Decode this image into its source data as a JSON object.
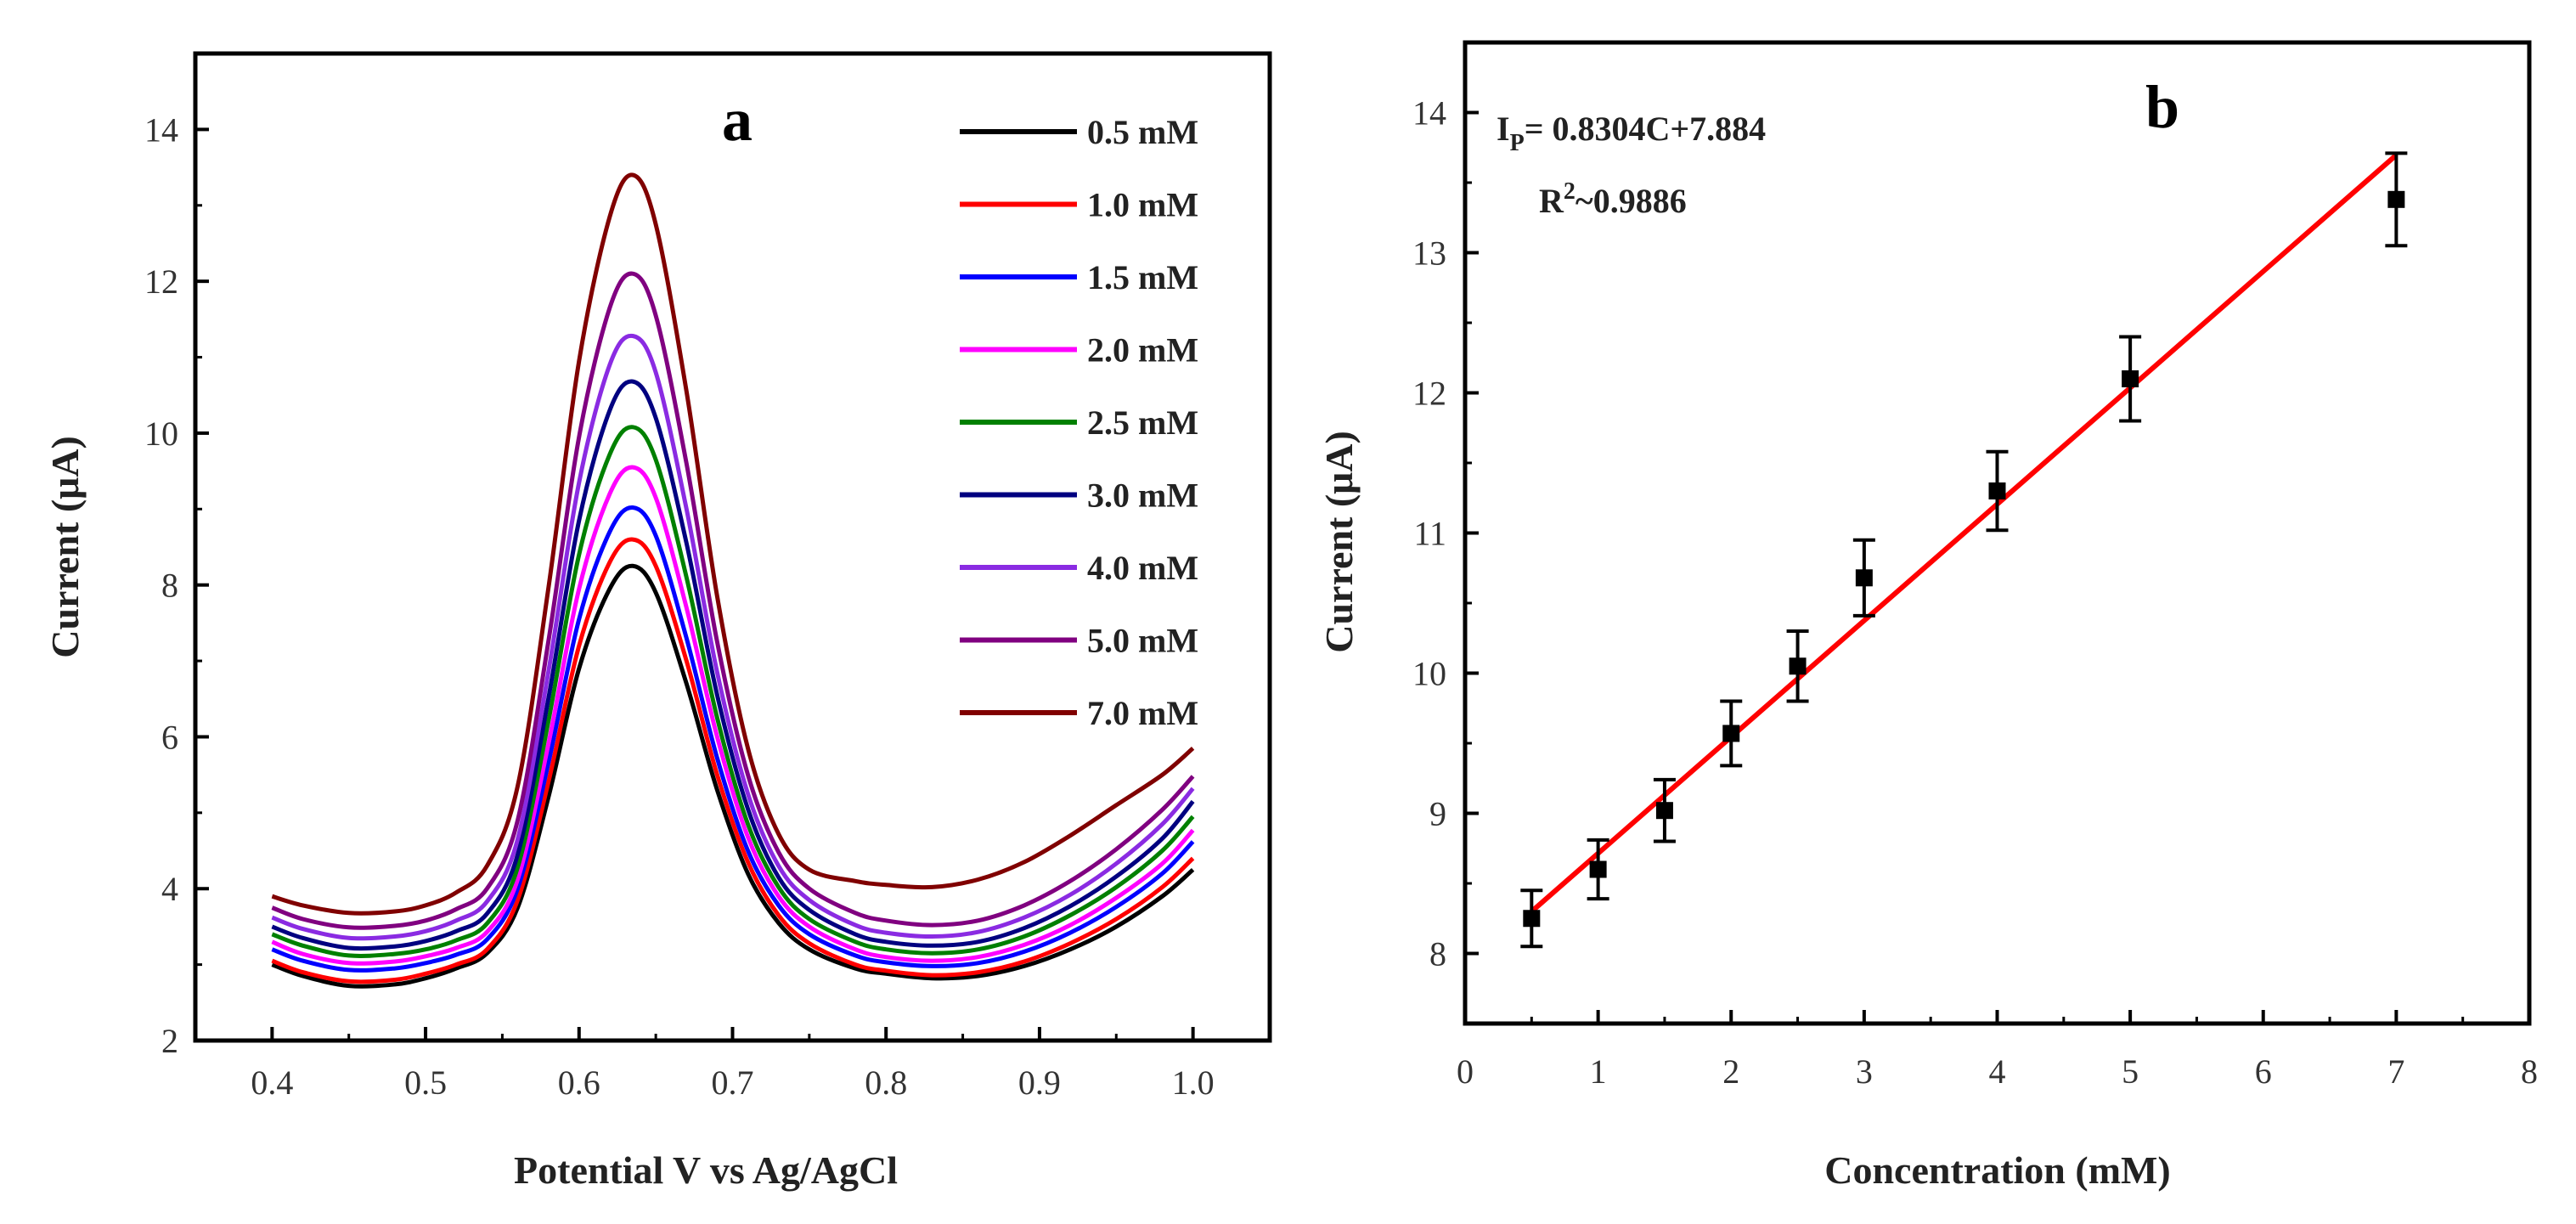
{
  "chart_data": [
    {
      "panel_label": "a",
      "type": "line",
      "title": "",
      "xlabel": "Potential V vs Ag/AgCl",
      "ylabel": "Current (μA)",
      "xlim": [
        0.35,
        1.05
      ],
      "ylim": [
        2,
        15
      ],
      "xticks": [
        0.4,
        0.5,
        0.6,
        0.7,
        0.8,
        0.9,
        1.0
      ],
      "xtick_labels": [
        "0.4",
        "0.5",
        "0.6",
        "0.7",
        "0.8",
        "0.9",
        "1.0"
      ],
      "yticks": [
        2,
        4,
        6,
        8,
        10,
        12,
        14
      ],
      "ytick_labels": [
        "2",
        "4",
        "6",
        "8",
        "10",
        "12",
        "14"
      ],
      "legend_position": "top-right",
      "x": [
        0.4,
        0.42,
        0.45,
        0.48,
        0.5,
        0.52,
        0.54,
        0.56,
        0.58,
        0.6,
        0.62,
        0.635,
        0.65,
        0.67,
        0.69,
        0.71,
        0.73,
        0.75,
        0.78,
        0.8,
        0.83,
        0.86,
        0.89,
        0.92,
        0.95,
        0.98,
        1.0
      ],
      "series": [
        {
          "name": "0.5 mM",
          "color": "#000000",
          "values": [
            3.0,
            2.85,
            2.72,
            2.74,
            2.82,
            2.95,
            3.15,
            3.75,
            5.2,
            6.9,
            7.95,
            8.25,
            7.9,
            6.7,
            5.3,
            4.2,
            3.55,
            3.2,
            2.95,
            2.88,
            2.82,
            2.85,
            2.98,
            3.2,
            3.5,
            3.9,
            4.25
          ]
        },
        {
          "name": "1.0 mM",
          "color": "#ff0000",
          "values": [
            3.05,
            2.9,
            2.78,
            2.8,
            2.88,
            3.0,
            3.2,
            3.85,
            5.4,
            7.2,
            8.3,
            8.6,
            8.25,
            7.0,
            5.5,
            4.35,
            3.65,
            3.28,
            3.0,
            2.92,
            2.86,
            2.9,
            3.04,
            3.28,
            3.6,
            4.02,
            4.4
          ]
        },
        {
          "name": "1.5 mM",
          "color": "#0000ff",
          "values": [
            3.2,
            3.05,
            2.93,
            2.95,
            3.02,
            3.13,
            3.33,
            4.0,
            5.65,
            7.55,
            8.7,
            9.02,
            8.65,
            7.3,
            5.72,
            4.5,
            3.78,
            3.4,
            3.12,
            3.03,
            2.98,
            3.02,
            3.17,
            3.42,
            3.76,
            4.2,
            4.62
          ]
        },
        {
          "name": "2.0 mM",
          "color": "#ff00ff",
          "values": [
            3.3,
            3.14,
            3.02,
            3.04,
            3.11,
            3.22,
            3.43,
            4.12,
            5.9,
            7.95,
            9.2,
            9.55,
            9.15,
            7.7,
            6.0,
            4.68,
            3.9,
            3.5,
            3.2,
            3.1,
            3.05,
            3.1,
            3.26,
            3.52,
            3.88,
            4.33,
            4.77
          ]
        },
        {
          "name": "2.5 mM",
          "color": "#008000",
          "values": [
            3.4,
            3.25,
            3.12,
            3.14,
            3.2,
            3.32,
            3.54,
            4.28,
            6.2,
            8.4,
            9.72,
            10.08,
            9.65,
            8.1,
            6.25,
            4.85,
            4.02,
            3.6,
            3.3,
            3.2,
            3.15,
            3.2,
            3.37,
            3.65,
            4.02,
            4.5,
            4.95
          ]
        },
        {
          "name": "3.0 mM",
          "color": "#000080",
          "values": [
            3.5,
            3.35,
            3.22,
            3.24,
            3.31,
            3.44,
            3.67,
            4.45,
            6.5,
            8.85,
            10.3,
            10.68,
            10.2,
            8.55,
            6.55,
            5.05,
            4.15,
            3.72,
            3.4,
            3.3,
            3.25,
            3.3,
            3.48,
            3.77,
            4.16,
            4.66,
            5.15
          ]
        },
        {
          "name": "4.0 mM",
          "color": "#8a2be2",
          "values": [
            3.62,
            3.47,
            3.35,
            3.37,
            3.44,
            3.58,
            3.83,
            4.65,
            6.85,
            9.35,
            10.9,
            11.28,
            10.8,
            9.0,
            6.85,
            5.25,
            4.3,
            3.85,
            3.52,
            3.42,
            3.37,
            3.43,
            3.62,
            3.92,
            4.33,
            4.85,
            5.32
          ]
        },
        {
          "name": "5.0 mM",
          "color": "#800080",
          "values": [
            3.75,
            3.6,
            3.49,
            3.51,
            3.58,
            3.73,
            4.0,
            4.9,
            7.25,
            9.95,
            11.65,
            12.1,
            11.55,
            9.6,
            7.25,
            5.5,
            4.48,
            4.0,
            3.68,
            3.58,
            3.52,
            3.58,
            3.78,
            4.1,
            4.52,
            5.04,
            5.48
          ]
        },
        {
          "name": "7.0 mM",
          "color": "#800000",
          "values": [
            3.9,
            3.78,
            3.68,
            3.7,
            3.78,
            3.95,
            4.3,
            5.35,
            7.95,
            10.95,
            12.85,
            13.4,
            12.75,
            10.55,
            7.85,
            5.85,
            4.72,
            4.25,
            4.1,
            4.05,
            4.02,
            4.12,
            4.35,
            4.7,
            5.1,
            5.5,
            5.85
          ]
        }
      ]
    },
    {
      "panel_label": "b",
      "type": "scatter",
      "title": "",
      "xlabel": "Concentration (mM)",
      "ylabel": "Current (μA)",
      "xlim": [
        0,
        8
      ],
      "ylim": [
        7.5,
        14.5
      ],
      "xticks": [
        0,
        1,
        2,
        3,
        4,
        5,
        6,
        7,
        8
      ],
      "xtick_labels": [
        "0",
        "1",
        "2",
        "3",
        "4",
        "5",
        "6",
        "7",
        "8"
      ],
      "yticks": [
        8,
        9,
        10,
        11,
        12,
        13,
        14
      ],
      "ytick_labels": [
        "8",
        "9",
        "10",
        "11",
        "12",
        "13",
        "14"
      ],
      "x": [
        0.5,
        1.0,
        1.5,
        2.0,
        2.5,
        3.0,
        4.0,
        5.0,
        7.0
      ],
      "y": [
        8.25,
        8.6,
        9.02,
        9.57,
        10.05,
        10.68,
        11.3,
        12.1,
        13.38
      ],
      "error": [
        0.2,
        0.21,
        0.22,
        0.23,
        0.25,
        0.27,
        0.28,
        0.3,
        0.33
      ],
      "fit": {
        "slope": 0.8304,
        "intercept": 7.884,
        "x_range": [
          0.5,
          7.0
        ],
        "color": "#ff0000"
      },
      "equation": {
        "prefix": "I",
        "subscript": "P",
        "rest": "= 0.8304C+7.884"
      },
      "r_squared": {
        "prefix": "R",
        "superscript": "2",
        "rest": "~0.9886"
      }
    }
  ]
}
